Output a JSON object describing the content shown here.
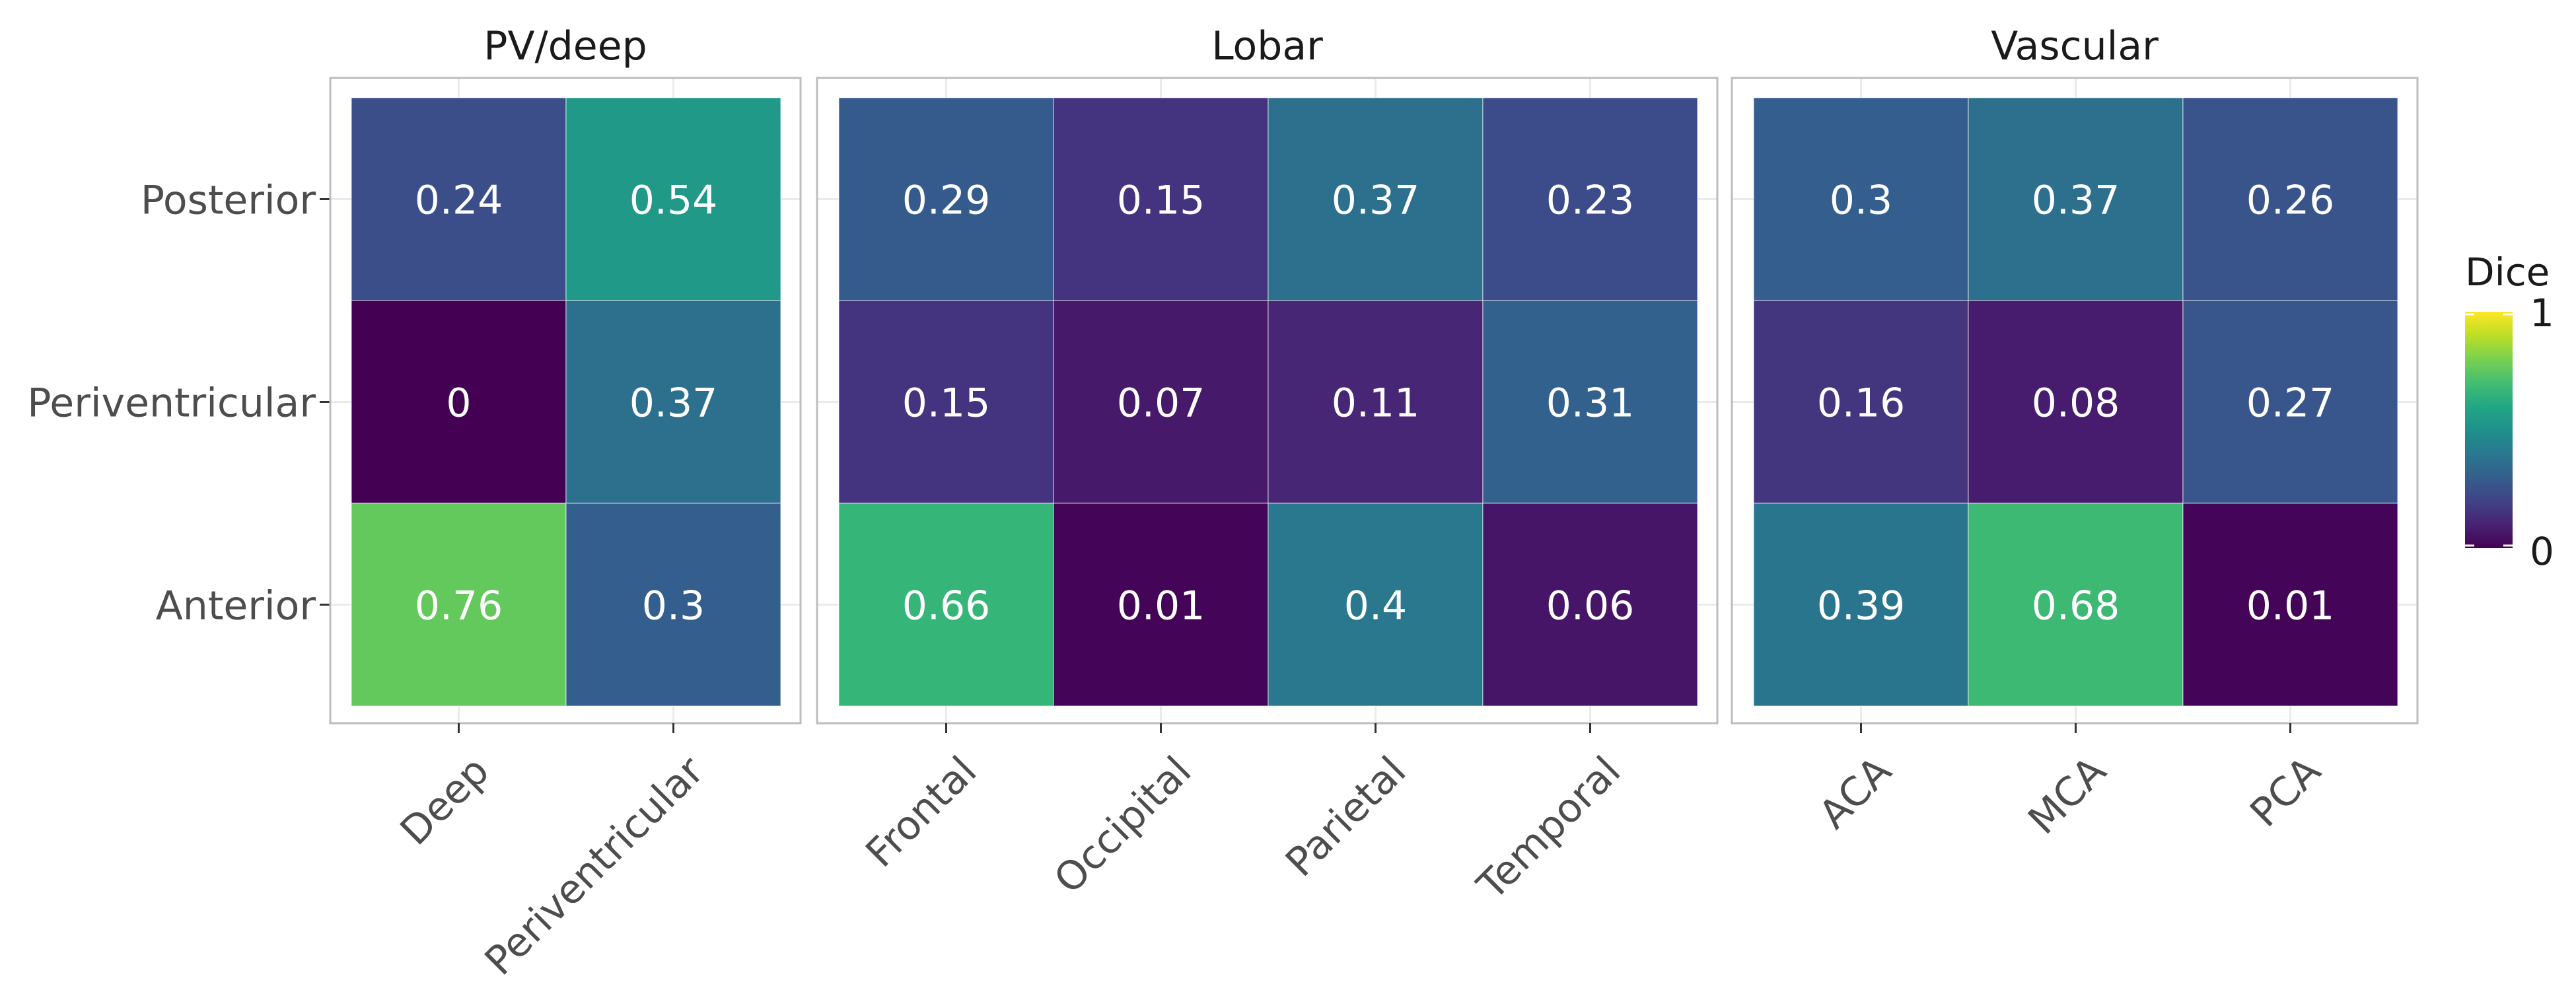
{
  "chart_data": {
    "type": "heatmap",
    "rows": [
      "Posterior",
      "Periventricular",
      "Anterior"
    ],
    "facets": [
      {
        "title": "PV/deep",
        "columns": [
          "Deep",
          "Periventricular"
        ],
        "values": [
          [
            0.24,
            0.54
          ],
          [
            0,
            0.37
          ],
          [
            0.76,
            0.3
          ]
        ],
        "labels": [
          [
            "0.24",
            "0.54"
          ],
          [
            "0",
            "0.37"
          ],
          [
            "0.76",
            "0.3"
          ]
        ]
      },
      {
        "title": "Lobar",
        "columns": [
          "Frontal",
          "Occipital",
          "Parietal",
          "Temporal"
        ],
        "values": [
          [
            0.29,
            0.15,
            0.37,
            0.23
          ],
          [
            0.15,
            0.07,
            0.11,
            0.31
          ],
          [
            0.66,
            0.01,
            0.4,
            0.06
          ]
        ],
        "labels": [
          [
            "0.29",
            "0.15",
            "0.37",
            "0.23"
          ],
          [
            "0.15",
            "0.07",
            "0.11",
            "0.31"
          ],
          [
            "0.66",
            "0.01",
            "0.4",
            "0.06"
          ]
        ]
      },
      {
        "title": "Vascular",
        "columns": [
          "ACA",
          "MCA",
          "PCA"
        ],
        "values": [
          [
            0.3,
            0.37,
            0.26
          ],
          [
            0.16,
            0.08,
            0.27
          ],
          [
            0.39,
            0.68,
            0.01
          ]
        ],
        "labels": [
          [
            "0.3",
            "0.37",
            "0.26"
          ],
          [
            "0.16",
            "0.08",
            "0.27"
          ],
          [
            "0.39",
            "0.68",
            "0.01"
          ]
        ]
      }
    ],
    "legend": {
      "title": "Dice",
      "min_label": "1",
      "max_label": "0",
      "range": [
        0,
        1
      ],
      "placement": "right"
    },
    "colorscale": "viridis",
    "grid": true
  }
}
